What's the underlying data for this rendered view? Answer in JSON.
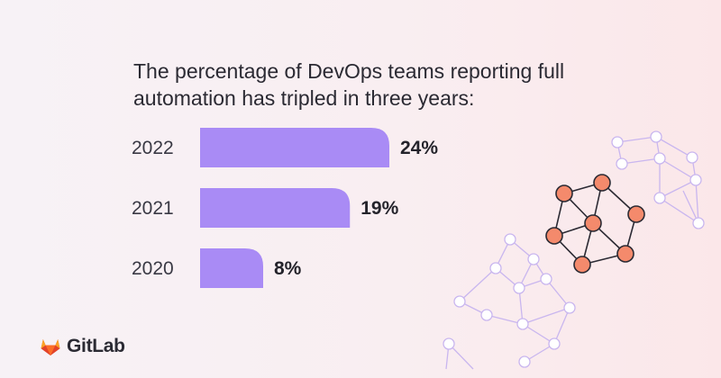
{
  "header": {
    "title_line1": "The percentage of DevOps teams reporting full",
    "title_line2": "automation has tripled in three years:"
  },
  "chart_data": {
    "type": "bar",
    "orientation": "horizontal",
    "categories": [
      "2022",
      "2021",
      "2020"
    ],
    "values": [
      24,
      19,
      8
    ],
    "value_labels": [
      "24%",
      "19%",
      "8%"
    ],
    "bar_color": "#a98bf5",
    "title": "The percentage of DevOps teams reporting full automation has tripled in three years:",
    "xlabel": "",
    "ylabel": "",
    "grid": false,
    "legend": "none"
  },
  "brand": {
    "logo_text": "GitLab",
    "logo_icon": "gitlab-tanuki-icon",
    "logo_color": "#e24329"
  },
  "decoration": {
    "icon": "network-graph-icon",
    "node_color": "#f48a6c",
    "node_stroke": "#2b2a33",
    "faint_color": "#c9b6ef"
  }
}
